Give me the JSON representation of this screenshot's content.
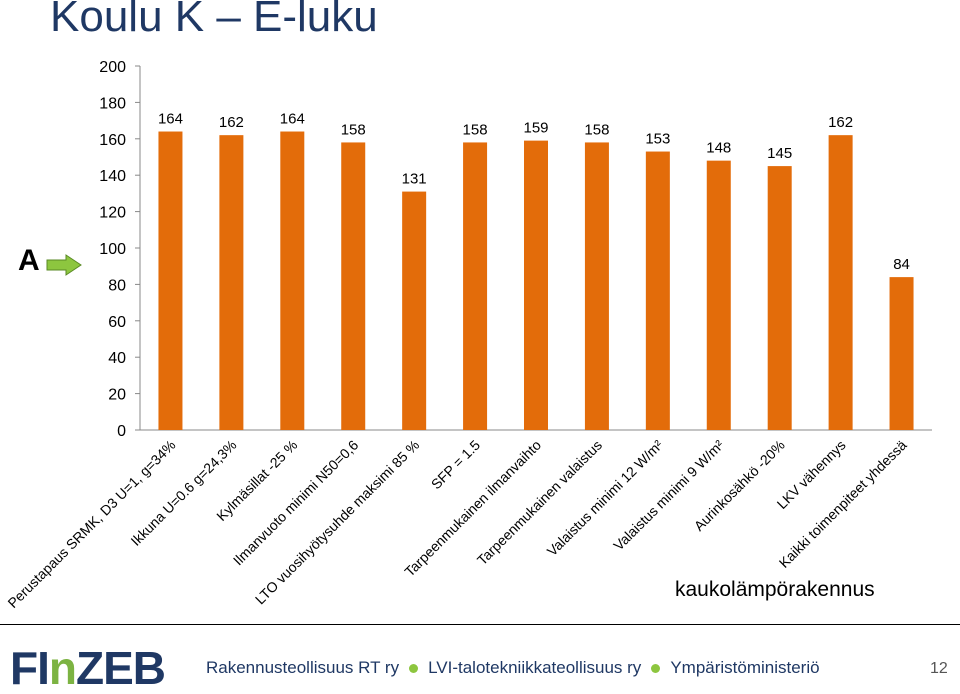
{
  "slide": {
    "title": "Koulu K – E-luku",
    "note": "kaukolämpörakennus",
    "marker": "A",
    "page_number": "12"
  },
  "footer": {
    "logo_part1": "FI",
    "logo_part2": "n",
    "logo_part3": "ZEB",
    "orgs": [
      "Rakennusteollisuus RT ry",
      "LVI-talotekniikkateollisuus ry",
      "Ympäristöministeriö"
    ]
  },
  "colors": {
    "bar": "#e36c0a",
    "title": "#1f3864",
    "arrow": "#8dc63f"
  },
  "chart_data": {
    "type": "bar",
    "categories": [
      "Perustapaus SRMK, D3 U=1, g=34%",
      "Ikkuna U=0.6 g=24,3%",
      "Kylmäsillat -25 %",
      "Ilmanvuoto minimi N50=0,6",
      "LTO vuosihyötysuhde maksimi 85 %",
      "SFP = 1.5",
      "Tarpeenmukainen ilmanvaihto",
      "Tarpeenmukainen valaistus",
      "Valaistus minimi 12 W/m²",
      "Valaistus minimi 9 W/m²",
      "Aurinkosähkö -20%",
      "LKV vähennys",
      "Kaikki toimenpiteet yhdessä"
    ],
    "values": [
      164,
      162,
      164,
      158,
      131,
      158,
      159,
      158,
      153,
      148,
      145,
      162,
      84
    ],
    "yticks": [
      0,
      20,
      40,
      60,
      80,
      100,
      120,
      140,
      160,
      180,
      200
    ],
    "ylim": [
      0,
      200
    ],
    "grid": false,
    "legend": "none"
  }
}
